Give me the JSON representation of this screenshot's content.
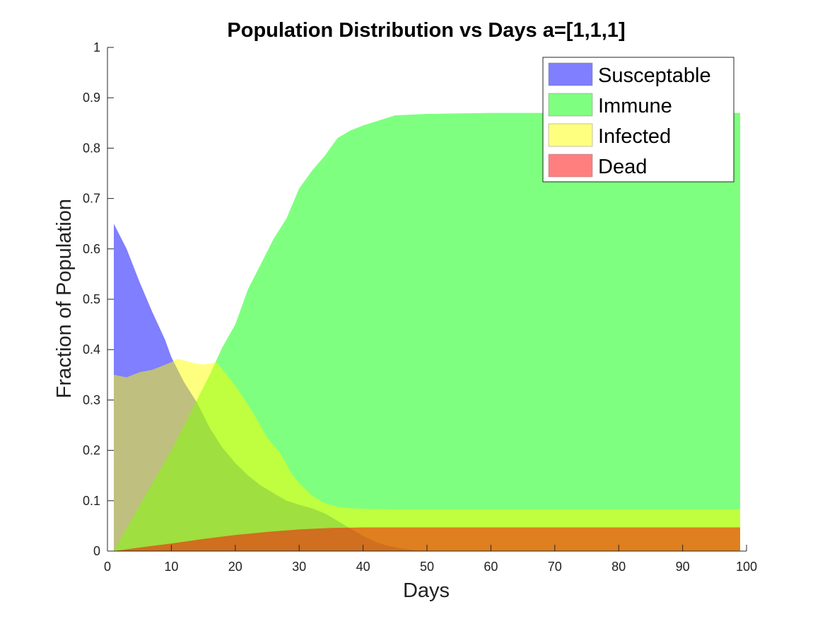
{
  "chart_data": {
    "type": "area",
    "title": "Population Distribution vs Days a=[1,1,1]",
    "xlabel": "Days",
    "ylabel": "Fraction of Population",
    "xlim": [
      0,
      100
    ],
    "ylim": [
      0,
      1
    ],
    "xticks": [
      "0",
      "10",
      "20",
      "30",
      "40",
      "50",
      "60",
      "70",
      "80",
      "90",
      "100"
    ],
    "yticks": [
      "0",
      "0.1",
      "0.2",
      "0.3",
      "0.4",
      "0.5",
      "0.6",
      "0.7",
      "0.8",
      "0.9",
      "1"
    ],
    "grid": false,
    "legend_position": "top-right",
    "overlap": "areas drawn from zero and blended with transparency",
    "series": [
      {
        "name": "Susceptable",
        "color": "#0000FF",
        "x": [
          1,
          3,
          5,
          7,
          9,
          10,
          12,
          14,
          16,
          18,
          20,
          22,
          24,
          26,
          28,
          30,
          32,
          34,
          36,
          38,
          40,
          42,
          44,
          46,
          48,
          50,
          55,
          60,
          70,
          80,
          90,
          99
        ],
        "values": [
          0.65,
          0.6,
          0.535,
          0.475,
          0.42,
          0.385,
          0.335,
          0.295,
          0.245,
          0.205,
          0.175,
          0.15,
          0.13,
          0.115,
          0.1,
          0.092,
          0.085,
          0.075,
          0.06,
          0.045,
          0.03,
          0.018,
          0.01,
          0.005,
          0.002,
          0.001,
          0.0,
          0.0,
          0.0,
          0.0,
          0.0,
          0.0
        ]
      },
      {
        "name": "Immune",
        "color": "#00FF00",
        "x": [
          1,
          5,
          10,
          12,
          14,
          16,
          18,
          20,
          22,
          24,
          26,
          28,
          30,
          32,
          34,
          36,
          38,
          40,
          45,
          50,
          60,
          70,
          80,
          90,
          99
        ],
        "values": [
          0.0,
          0.09,
          0.2,
          0.25,
          0.3,
          0.35,
          0.405,
          0.45,
          0.52,
          0.57,
          0.62,
          0.66,
          0.72,
          0.755,
          0.785,
          0.82,
          0.835,
          0.845,
          0.865,
          0.868,
          0.87,
          0.87,
          0.87,
          0.87,
          0.87
        ]
      },
      {
        "name": "Infected",
        "color": "#FFFF00",
        "x": [
          1,
          3,
          5,
          7,
          9,
          10,
          11,
          13,
          15,
          17,
          19,
          21,
          23,
          25,
          27,
          29,
          30,
          32,
          34,
          36,
          38,
          40,
          45,
          50,
          60,
          70,
          80,
          90,
          99
        ],
        "values": [
          0.35,
          0.345,
          0.355,
          0.36,
          0.37,
          0.375,
          0.382,
          0.375,
          0.37,
          0.375,
          0.345,
          0.31,
          0.27,
          0.225,
          0.195,
          0.15,
          0.135,
          0.11,
          0.095,
          0.088,
          0.085,
          0.084,
          0.083,
          0.083,
          0.083,
          0.083,
          0.083,
          0.083,
          0.083
        ]
      },
      {
        "name": "Dead",
        "color": "#FF0000",
        "x": [
          1,
          5,
          10,
          15,
          20,
          25,
          30,
          35,
          40,
          50,
          60,
          70,
          80,
          90,
          99
        ],
        "values": [
          0.0,
          0.007,
          0.015,
          0.024,
          0.032,
          0.038,
          0.043,
          0.046,
          0.047,
          0.047,
          0.047,
          0.047,
          0.047,
          0.047,
          0.047
        ]
      }
    ]
  }
}
